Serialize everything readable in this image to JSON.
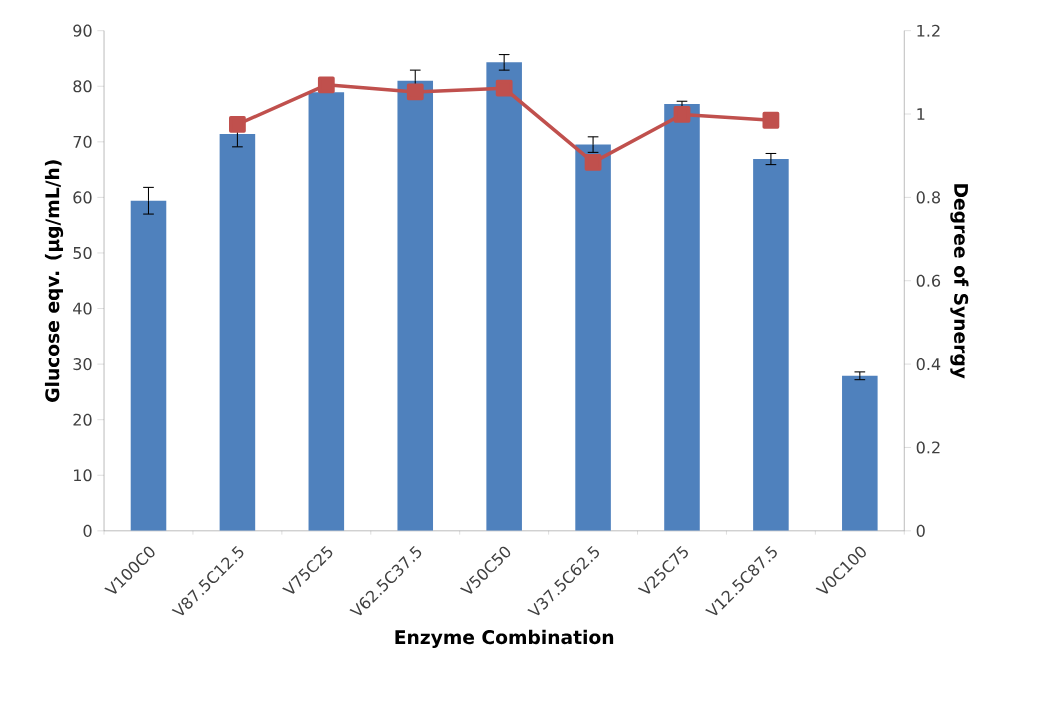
{
  "chart_data": {
    "type": "bar",
    "xlabel": "Enzyme Combination",
    "ylabel": "Glucose eqv. (µg/mL/h)",
    "y2label": "Degree of Synergy",
    "categories": [
      "V100C0",
      "V87.5C12.5",
      "V75C25",
      "V62.5C37.5",
      "V50C50",
      "V37.5C62.5",
      "V25C75",
      "V12.5C87.5",
      "V0C100"
    ],
    "series": [
      {
        "color": "#4f81bd",
        "values": [
          59.4,
          71.4,
          78.9,
          81.0,
          84.3,
          69.5,
          76.8,
          66.9,
          27.9
        ],
        "errors": [
          2.4,
          2.3,
          null,
          1.9,
          1.4,
          1.4,
          0.5,
          1.0,
          0.7
        ]
      },
      {
        "type": "line",
        "axis": "y2",
        "color": "#c0504d",
        "marker": "square",
        "line_style": "solid",
        "values": [
          null,
          0.975,
          1.07,
          1.053,
          1.062,
          0.884,
          0.999,
          0.985,
          null
        ]
      }
    ],
    "ylim": [
      0,
      90
    ],
    "yticks": [
      0,
      10,
      20,
      30,
      40,
      50,
      60,
      70,
      80,
      90
    ],
    "y2lim": [
      0,
      1.2
    ],
    "y2ticks": [
      0,
      0.2,
      0.4,
      0.6,
      0.8,
      1,
      1.2
    ]
  }
}
